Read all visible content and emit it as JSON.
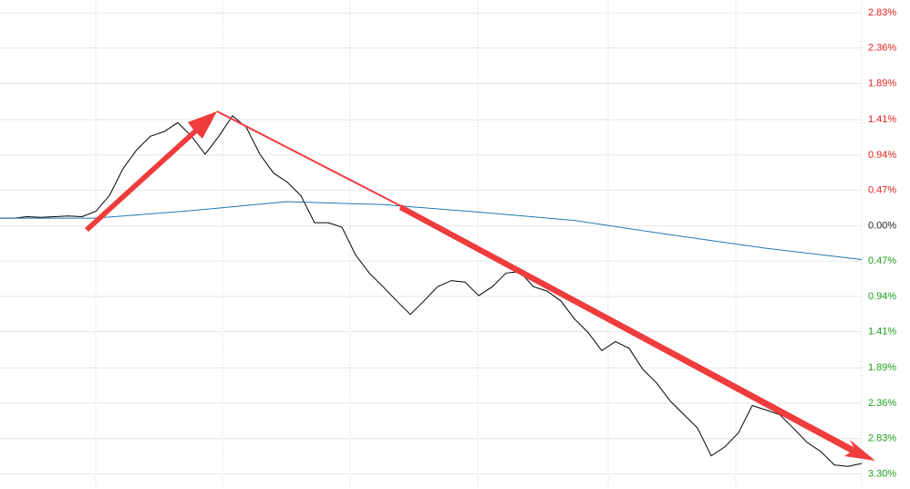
{
  "chart_data": {
    "type": "line",
    "series": [
      {
        "color": "#000000",
        "x": [
          0,
          1,
          2,
          3,
          4,
          5,
          6,
          7,
          8,
          9,
          10,
          11,
          12,
          13,
          14,
          15,
          16,
          17,
          18,
          19,
          20,
          21,
          22,
          23,
          24,
          25,
          26,
          27,
          28,
          29,
          30,
          31,
          32,
          33,
          34,
          35,
          36,
          37,
          38,
          39,
          40,
          41,
          42,
          43,
          44,
          45,
          46,
          47,
          48,
          49,
          50,
          51,
          52,
          53,
          54,
          55,
          56,
          57,
          58,
          59,
          60,
          61,
          62,
          63
        ],
        "values": [
          0.1,
          0.1,
          0.12,
          0.11,
          0.12,
          0.13,
          0.12,
          0.19,
          0.4,
          0.76,
          1.01,
          1.19,
          1.25,
          1.37,
          1.19,
          0.95,
          1.19,
          1.46,
          1.31,
          0.95,
          0.7,
          0.58,
          0.4,
          0.04,
          0.04,
          -0.02,
          -0.39,
          -0.63,
          -0.81,
          -1.0,
          -1.18,
          -1.0,
          -0.81,
          -0.73,
          -0.75,
          -0.93,
          -0.81,
          -0.63,
          -0.61,
          -0.81,
          -0.87,
          -1.0,
          -1.24,
          -1.42,
          -1.66,
          -1.54,
          -1.63,
          -1.91,
          -2.09,
          -2.33,
          -2.51,
          -2.69,
          -3.06,
          -2.94,
          -2.75,
          -2.39,
          -2.45,
          -2.51,
          -2.69,
          -2.88,
          -3.0,
          -3.18,
          -3.2,
          -3.16
        ]
      },
      {
        "color": "#1f77b4",
        "x": [
          0,
          7,
          14,
          21,
          28,
          35,
          42,
          49,
          56,
          63
        ],
        "values": [
          0.1,
          0.1,
          0.2,
          0.32,
          0.28,
          0.18,
          0.07,
          -0.12,
          -0.3,
          -0.45
        ]
      }
    ],
    "xlim": [
      0,
      63
    ],
    "ylim": [
      -3.5,
      3.0
    ],
    "yticks": [
      {
        "value": 2.83,
        "label": "2.83%"
      },
      {
        "value": 2.36,
        "label": "2.36%"
      },
      {
        "value": 1.89,
        "label": "1.89%"
      },
      {
        "value": 1.41,
        "label": "1.41%"
      },
      {
        "value": 0.94,
        "label": "0.94%"
      },
      {
        "value": 0.47,
        "label": "0.47%"
      },
      {
        "value": 0,
        "label": "0.00%"
      },
      {
        "value": -0.47,
        "label": "0.47%"
      },
      {
        "value": -0.94,
        "label": "0.94%"
      },
      {
        "value": -1.41,
        "label": "1.41%"
      },
      {
        "value": -1.89,
        "label": "1.89%"
      },
      {
        "value": -2.36,
        "label": "2.36%"
      },
      {
        "value": -2.83,
        "label": "2.83%"
      },
      {
        "value": -3.3,
        "label": "3.30%"
      }
    ],
    "up_color": "#e0201c",
    "down_color": "#1a9e1a",
    "grid": true
  }
}
